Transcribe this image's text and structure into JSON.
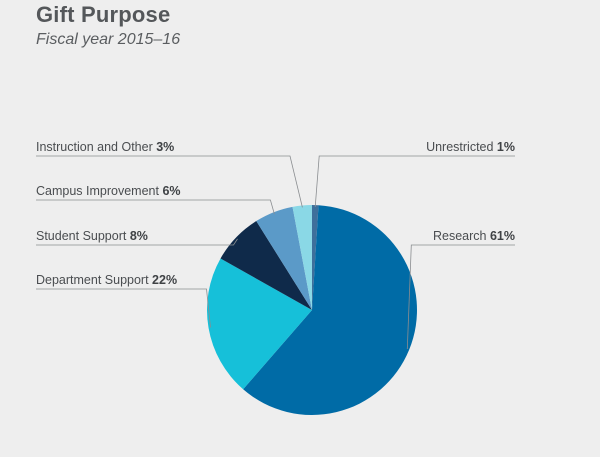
{
  "chart_data": {
    "type": "pie",
    "title": "Gift Purpose",
    "subtitle": "Fiscal year 2015–16",
    "slices": [
      {
        "label": "Unrestricted",
        "value": 1,
        "pct_label": "1%",
        "color": "#3e6f9b"
      },
      {
        "label": "Research",
        "value": 61,
        "pct_label": "61%",
        "color": "#006ba6"
      },
      {
        "label": "Department Support",
        "value": 22,
        "pct_label": "22%",
        "color": "#16c0d9"
      },
      {
        "label": "Student Support",
        "value": 8,
        "pct_label": "8%",
        "color": "#0f2a4a"
      },
      {
        "label": "Campus Improvement",
        "value": 6,
        "pct_label": "6%",
        "color": "#5b9ac8"
      },
      {
        "label": "Instruction and Other",
        "value": 3,
        "pct_label": "3%",
        "color": "#8ad8e6"
      }
    ],
    "leader_color": "#8a8d90",
    "background": "#eeeeee"
  }
}
